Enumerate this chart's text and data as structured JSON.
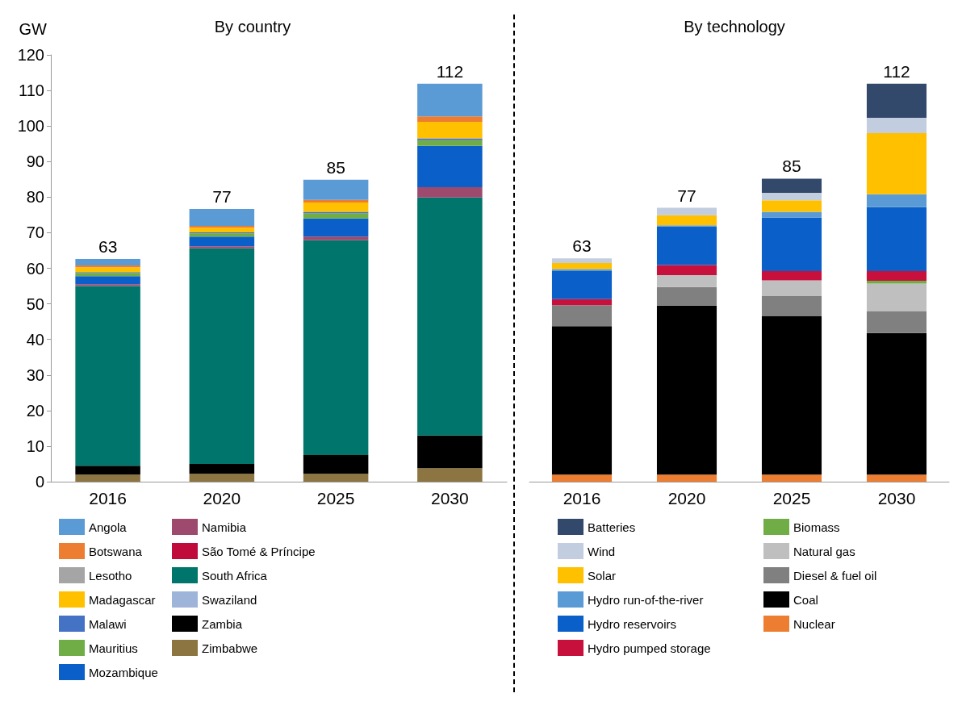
{
  "chart_data": [
    {
      "type": "bar",
      "title": "By country",
      "ylabel": "GW",
      "categories": [
        "2016",
        "2020",
        "2025",
        "2030"
      ],
      "stacked": true,
      "ylim": [
        0,
        120
      ],
      "yticks": [
        0,
        10,
        20,
        30,
        40,
        50,
        60,
        70,
        80,
        90,
        100,
        110,
        120
      ],
      "grid": false,
      "legend": "bottom",
      "totals": [
        "63",
        "77",
        "85",
        "112"
      ],
      "series": [
        {
          "name": "Zimbabwe",
          "color": "#8c7541",
          "values": [
            2.0,
            2.2,
            2.2,
            3.8
          ]
        },
        {
          "name": "Zambia",
          "color": "#000000",
          "values": [
            2.5,
            2.8,
            5.3,
            9.2
          ]
        },
        {
          "name": "Swaziland",
          "color": "#9fb4d9",
          "values": [
            null,
            null,
            null,
            null
          ]
        },
        {
          "name": "South Africa",
          "color": "#00756b",
          "values": [
            50.5,
            60.6,
            60.4,
            66.9
          ]
        },
        {
          "name": "São Tomé & Príncipe",
          "color": "#c00a3c",
          "values": [
            null,
            null,
            null,
            null
          ]
        },
        {
          "name": "Namibia",
          "color": "#9e4a6e",
          "values": [
            0.5,
            0.6,
            1.0,
            2.9
          ]
        },
        {
          "name": "Mozambique",
          "color": "#0a5fc8",
          "values": [
            2.3,
            2.7,
            5.1,
            11.6
          ]
        },
        {
          "name": "Mauritius",
          "color": "#70ad47",
          "values": [
            0.9,
            0.9,
            1.5,
            1.6
          ]
        },
        {
          "name": "Malawi",
          "color": "#4472c4",
          "values": [
            0.2,
            0.3,
            0.4,
            0.5
          ]
        },
        {
          "name": "Madagascar",
          "color": "#ffc000",
          "values": [
            1.4,
            1.3,
            2.6,
            4.7
          ]
        },
        {
          "name": "Lesotho",
          "color": "#a5a5a5",
          "values": [
            null,
            null,
            null,
            null
          ]
        },
        {
          "name": "Botswana",
          "color": "#ed7d31",
          "values": [
            0.5,
            0.5,
            0.7,
            1.5
          ]
        },
        {
          "name": "Angola",
          "color": "#5b9bd5",
          "values": [
            1.8,
            4.8,
            5.7,
            9.2
          ]
        }
      ]
    },
    {
      "type": "bar",
      "title": "By technology",
      "categories": [
        "2016",
        "2020",
        "2025",
        "2030"
      ],
      "stacked": true,
      "ylim": [
        0,
        120
      ],
      "yticks": [
        0,
        10,
        20,
        30,
        40,
        50,
        60,
        70,
        80,
        90,
        100,
        110,
        120
      ],
      "tick_labels": "x",
      "grid": false,
      "legend": "bottom",
      "totals": [
        "63",
        "77",
        "85",
        "112"
      ],
      "series": [
        {
          "name": "Nuclear",
          "color": "#ed7d31",
          "values": [
            2.0,
            2.0,
            2.0,
            2.0
          ]
        },
        {
          "name": "Coal",
          "color": "#000000",
          "values": [
            41.7,
            47.5,
            44.6,
            39.8
          ]
        },
        {
          "name": "Diesel & fuel oil",
          "color": "#808080",
          "values": [
            5.9,
            5.2,
            5.6,
            6.2
          ]
        },
        {
          "name": "Natural gas",
          "color": "#bfbfbf",
          "values": [
            0,
            3.4,
            4.4,
            7.7
          ]
        },
        {
          "name": "Biomass",
          "color": "#70ad47",
          "values": [
            0,
            0,
            0,
            0.8
          ]
        },
        {
          "name": "Hydro pumped storage",
          "color": "#c8103c",
          "values": [
            1.7,
            2.8,
            2.6,
            2.7
          ]
        },
        {
          "name": "Hydro reservoirs",
          "color": "#0a5fc8",
          "values": [
            7.9,
            10.9,
            15.1,
            18.0
          ]
        },
        {
          "name": "Hydro run-of-the-river",
          "color": "#5b9bd5",
          "values": [
            0.6,
            0.3,
            1.6,
            3.6
          ]
        },
        {
          "name": "Solar",
          "color": "#ffc000",
          "values": [
            1.7,
            2.8,
            3.2,
            17.2
          ]
        },
        {
          "name": "Wind",
          "color": "#c2cde0",
          "values": [
            1.3,
            2.1,
            2.1,
            4.3
          ]
        },
        {
          "name": "Batteries",
          "color": "#33496b",
          "values": [
            0,
            0,
            4.0,
            9.6
          ]
        }
      ]
    }
  ]
}
